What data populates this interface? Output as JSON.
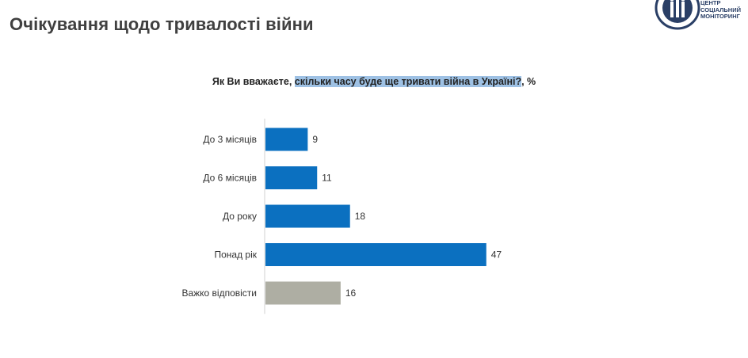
{
  "page": {
    "title": "Очікування щодо тривалості війни"
  },
  "logo": {
    "line1": "ЦЕНТР",
    "line2": "СОЦІАЛЬНИЙ",
    "line3": "МОНІТОРИНГ",
    "color": "#2a3f66"
  },
  "question": {
    "prefix": "Як Ви вважаєте, ",
    "highlight": "скільки часу буде ще тривати війна в Україні?",
    "suffix": ", %",
    "highlight_color": "#9ec1e4"
  },
  "chart_data": {
    "type": "bar",
    "orientation": "horizontal",
    "categories": [
      "До 3 місяців",
      "До 6 місяців",
      "До року",
      "Понад рік",
      "Важко відповісти"
    ],
    "values": [
      9,
      11,
      18,
      47,
      16
    ],
    "colors": [
      "#0b70c0",
      "#0b70c0",
      "#0b70c0",
      "#0b70c0",
      "#aeaea3"
    ],
    "title": "",
    "xlabel": "",
    "ylabel": "",
    "xlim": [
      0,
      50
    ],
    "grid": false,
    "legend": "none"
  }
}
